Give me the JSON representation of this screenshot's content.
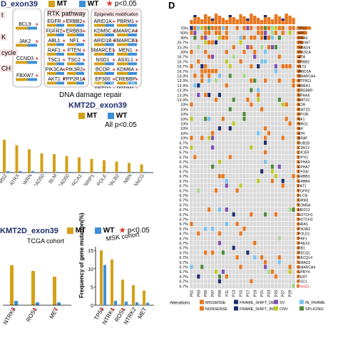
{
  "colors": {
    "mt": "#d4a017",
    "wt": "#3d8fd6",
    "sig": "#e0302a",
    "pink_bg": "#f7e4e4",
    "orange": "#e8761e",
    "lightblue": "#79c1ef",
    "navy": "#1c2d6e",
    "purple": "#7f4fb3",
    "green": "#4f8a3a",
    "olive": "#bfc928",
    "grid_bg": "#d9d9d9",
    "lightgreen": "#a9d58f",
    "tan": "#e8a85a"
  },
  "panel_a": {
    "header": "D_exon39",
    "legend_mt": "MT",
    "legend_wt": "WT",
    "legend_sig": "p<0.05",
    "boxes": [
      {
        "title": "",
        "genes": [
          "BCL9",
          "JAK2",
          "CCND3",
          "FBXW7"
        ]
      },
      {
        "title": "RTK pathway",
        "genes": [
          "EGFR",
          "ERBB2",
          "FGFR2",
          "ERBB3",
          "ABL1",
          "NF1",
          "RAF1",
          "PTEN",
          "TSC1",
          "TSC2",
          "PIK3CA",
          "PIK3R2",
          "AKT1",
          "PPP2R1A"
        ]
      },
      {
        "title": "Epigenetic modification",
        "genes": [
          "ARID1A",
          "PBRM1",
          "KDM5C",
          "SMARCA4",
          "ARID1B",
          "SMARCB1",
          "SMARCE1",
          "MEN1",
          "NSD1",
          "ASXL1",
          "BCOR",
          "KDM6A",
          "EP300",
          "CREBBP",
          "SETD2",
          "PRDM1",
          "EZH2",
          "DNMT3A"
        ]
      }
    ],
    "side_tags": [
      "t",
      "K",
      "cycle",
      "CH"
    ],
    "mini_values": [
      "42.9%",
      "7%",
      "15.8%"
    ]
  },
  "panel_b": {
    "title": "DNA damage repair",
    "legend_title": "KMT2D_exon39",
    "legend_mt": "MT",
    "legend_wt": "WT",
    "sig_note": "All p<0.05",
    "chart_data": {
      "type": "bar",
      "title": "DNA damage repair",
      "categories": [
        "PMS2",
        "ATRX",
        "WRN",
        "RAD50",
        "BLM",
        "RAD50",
        "BRCA1",
        "BRIP1",
        "POLE",
        "PALB2",
        "NBN",
        "FANCG"
      ],
      "series": [
        {
          "name": "MT",
          "values": [
            48,
            40,
            34,
            28,
            27,
            24,
            22,
            20,
            18,
            16,
            14,
            12
          ]
        },
        {
          "name": "WT",
          "values": [
            2,
            2,
            2,
            1,
            1,
            1,
            1,
            1,
            1,
            1,
            1,
            1
          ]
        }
      ]
    }
  },
  "panel_c": {
    "legend_title": "KMT2D_exon39",
    "legend_mt": "MT",
    "legend_wt": "WT",
    "legend_sig": "p<0.05",
    "tcga": {
      "label": "TCGA cohort",
      "chart_data": {
        "type": "bar",
        "categories": [
          "NTRK3",
          "ROS1",
          "MET"
        ],
        "series": [
          {
            "name": "MT",
            "values": [
              28,
              24,
              20
            ]
          },
          {
            "name": "WT",
            "values": [
              3,
              2,
              2
            ]
          }
        ]
      }
    },
    "msk": {
      "label": "MSK cohort",
      "ylabel": "Frequency of gene mutation(%)",
      "yticks": [
        "0",
        "5",
        "10",
        "15"
      ],
      "chart_data": {
        "type": "bar",
        "categories": [
          "TP53",
          "NTRK1",
          "ROS1",
          "NTRK2",
          "MET"
        ],
        "ylim": [
          0,
          16
        ],
        "series": [
          {
            "name": "MT",
            "values": [
              15,
              12.5,
              7,
              5.5,
              4
            ]
          },
          {
            "name": "WT",
            "values": [
              11,
              1.2,
              1,
              0.8,
              0.7
            ]
          }
        ]
      }
    }
  },
  "panel_d": {
    "label": "D",
    "genes": [
      "TP53",
      "APC",
      "KRAS",
      "FBXW7",
      "SMAD4",
      "PIK3CA",
      "ATM",
      "ERBB2",
      "FLT3",
      "ARID1A",
      "SMARCA4",
      "PTPN11",
      "AMER1",
      "CREBBP",
      "EPHA5",
      "KMT2C",
      "KDR",
      "KMT2D",
      "MTOR",
      "NF1",
      "NRG1",
      "AR",
      "ATR",
      "BRAF",
      "BUB1B",
      "CDK12",
      "DICER",
      "DPYD",
      "EPHA3",
      "EPHA7",
      "EP300",
      "ERBB3",
      "ERBB4",
      "FAT1",
      "FGFR2",
      "FLCN",
      "GRM3",
      "KDM5A",
      "MED12",
      "NOTCH1",
      "NOTCH3",
      "NRAS",
      "PIK3R2",
      "POLD1",
      "PRF1",
      "PREX2",
      "RB1",
      "RECQL",
      "RECQL4",
      "SMAD2",
      "SMARCA4",
      "SPRY4",
      "TERT",
      "TSC1",
      "TSHZ3"
    ],
    "freqs": [
      "70%",
      "50%",
      "30%",
      "26.7%",
      "23.3%",
      "20%",
      "16.7%",
      "16.7%",
      "16.7%",
      "16.7%",
      "13.3%",
      "13.3%",
      "13.3%",
      "13.3%",
      "13.3%",
      "13.3%",
      "10%",
      "10%",
      "10%",
      "10%",
      "10%",
      "10%",
      "10%",
      "10%",
      "6.7%",
      "6.7%",
      "6.7%",
      "6.7%",
      "6.7%",
      "6.7%",
      "6.7%",
      "6.7%",
      "6.7%",
      "6.7%",
      "6.7%",
      "6.7%",
      "6.7%",
      "6.7%",
      "6.7%",
      "6.7%",
      "6.7%",
      "6.7%",
      "6.7%",
      "6.7%",
      "6.7%",
      "6.7%",
      "6.7%",
      "6.7%",
      "6.7%",
      "6.7%",
      "6.7%",
      "6.7%",
      "6.7%",
      "6.7%",
      "6.7%"
    ],
    "patients": [
      "P01",
      "P03",
      "P05",
      "P07",
      "P09",
      "P11",
      "P13",
      "P15",
      "P17",
      "P19",
      "P21",
      "P23",
      "P25",
      "P27",
      "P29"
    ],
    "alterations_title": "Alterations",
    "legend": [
      {
        "label": "MISSENSE",
        "color": "#e8761e"
      },
      {
        "label": "FRAME_SHIFT_DEL",
        "color": "#1c2d6e"
      },
      {
        "label": "SV",
        "color": "#7f4fb3"
      },
      {
        "label": "IN_FRAME",
        "color": "#79c1ef"
      },
      {
        "label": "NONSENSE",
        "color": "#e8761e"
      },
      {
        "label": "FRAME_SHIFT_INS",
        "color": "#1c2d6e"
      },
      {
        "label": "CNV",
        "color": "#bfc928"
      },
      {
        "label": "SPLICING",
        "color": "#4f8a3a"
      }
    ]
  }
}
